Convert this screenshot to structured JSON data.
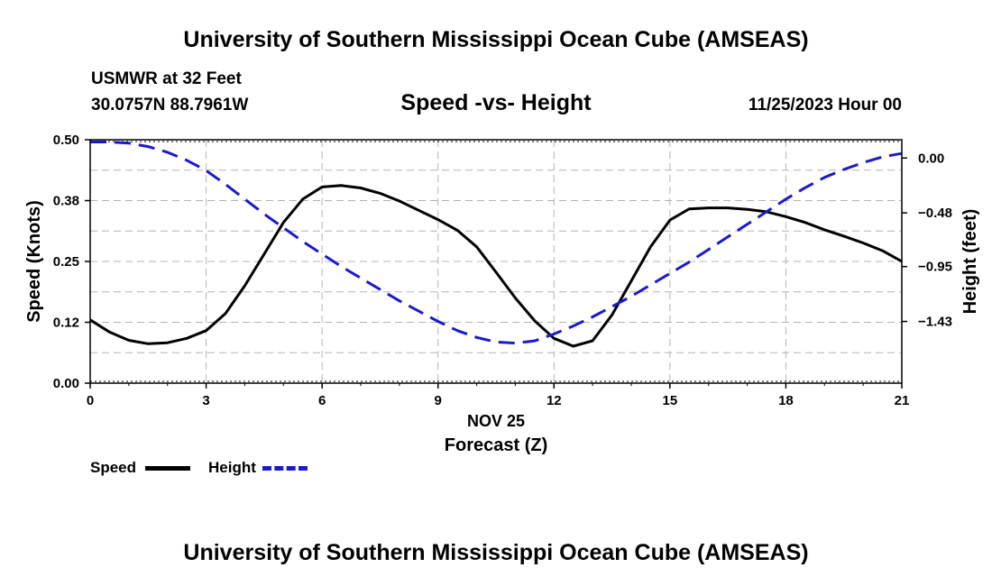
{
  "header": {
    "title": "University of Southern Mississippi Ocean Cube (AMSEAS)",
    "station": "USMWR at 32 Feet",
    "coords": "30.0757N  88.7961W",
    "subtitle": "Speed -vs- Height",
    "date": "11/25/2023 Hour 00"
  },
  "footer": {
    "title": "University of Southern Mississippi Ocean Cube (AMSEAS)"
  },
  "legend": {
    "speed_label": "Speed",
    "height_label": "Height"
  },
  "colors": {
    "speed": "#000000",
    "height": "#1a1acc",
    "grid": "#b4b4b4"
  },
  "chart_data": {
    "type": "line",
    "xlabel_date": "NOV 25",
    "xlabel": "Forecast (Z)",
    "ylabel_left": "Speed (Knots)",
    "ylabel_right": "Height (feet)",
    "xlim": [
      0,
      21
    ],
    "ylim_left": [
      0,
      0.5
    ],
    "ylim_right": [
      -1.97,
      0.16
    ],
    "x_ticks": [
      "0",
      "3",
      "6",
      "9",
      "12",
      "15",
      "18",
      "21"
    ],
    "y_left_ticks": [
      {
        "value": 0.0,
        "label": "0.00"
      },
      {
        "value": 0.125,
        "label": "0.12"
      },
      {
        "value": 0.25,
        "label": "0.25"
      },
      {
        "value": 0.375,
        "label": "0.38"
      },
      {
        "value": 0.5,
        "label": "0.50"
      }
    ],
    "y_right_ticks": [
      {
        "value": 0.0,
        "label": "0.00"
      },
      {
        "value": -0.48,
        "label": "-0.48"
      },
      {
        "value": -0.95,
        "label": "-0.95"
      },
      {
        "value": -1.43,
        "label": "-1.43"
      }
    ],
    "series": [
      {
        "name": "Speed",
        "axis": "left",
        "style": "solid",
        "x": [
          0,
          0.5,
          1,
          1.5,
          2,
          2.5,
          3,
          3.5,
          4,
          4.5,
          5,
          5.5,
          6,
          6.5,
          7,
          7.5,
          8,
          8.5,
          9,
          9.5,
          10,
          10.5,
          11,
          11.5,
          12,
          12.5,
          13,
          13.5,
          14,
          14.5,
          15,
          15.5,
          16,
          16.5,
          17,
          17.5,
          18,
          18.5,
          19,
          19.5,
          20,
          20.5,
          21
        ],
        "values": [
          0.13,
          0.105,
          0.088,
          0.081,
          0.083,
          0.092,
          0.108,
          0.143,
          0.2,
          0.265,
          0.33,
          0.378,
          0.403,
          0.406,
          0.401,
          0.39,
          0.374,
          0.355,
          0.336,
          0.314,
          0.28,
          0.228,
          0.175,
          0.128,
          0.092,
          0.076,
          0.087,
          0.14,
          0.21,
          0.28,
          0.335,
          0.358,
          0.36,
          0.36,
          0.357,
          0.352,
          0.342,
          0.33,
          0.315,
          0.302,
          0.288,
          0.272,
          0.25
        ]
      },
      {
        "name": "Height",
        "axis": "right",
        "style": "dashed",
        "x": [
          0,
          0.5,
          1,
          1.5,
          2,
          2.5,
          3,
          3.5,
          4,
          4.5,
          5,
          5.5,
          6,
          6.5,
          7,
          7.5,
          8,
          8.5,
          9,
          9.5,
          10,
          10.5,
          11,
          11.5,
          12,
          12.5,
          13,
          13.5,
          14,
          14.5,
          15,
          15.5,
          16,
          16.5,
          17,
          17.5,
          18,
          18.5,
          19,
          19.5,
          20,
          20.5,
          21
        ],
        "values": [
          0.14,
          0.14,
          0.13,
          0.1,
          0.05,
          -0.02,
          -0.11,
          -0.23,
          -0.36,
          -0.49,
          -0.61,
          -0.73,
          -0.84,
          -0.95,
          -1.05,
          -1.15,
          -1.25,
          -1.34,
          -1.43,
          -1.51,
          -1.57,
          -1.61,
          -1.62,
          -1.6,
          -1.54,
          -1.47,
          -1.39,
          -1.3,
          -1.21,
          -1.11,
          -1.01,
          -0.91,
          -0.8,
          -0.69,
          -0.58,
          -0.47,
          -0.36,
          -0.26,
          -0.17,
          -0.1,
          -0.04,
          0.01,
          0.04
        ]
      }
    ]
  }
}
